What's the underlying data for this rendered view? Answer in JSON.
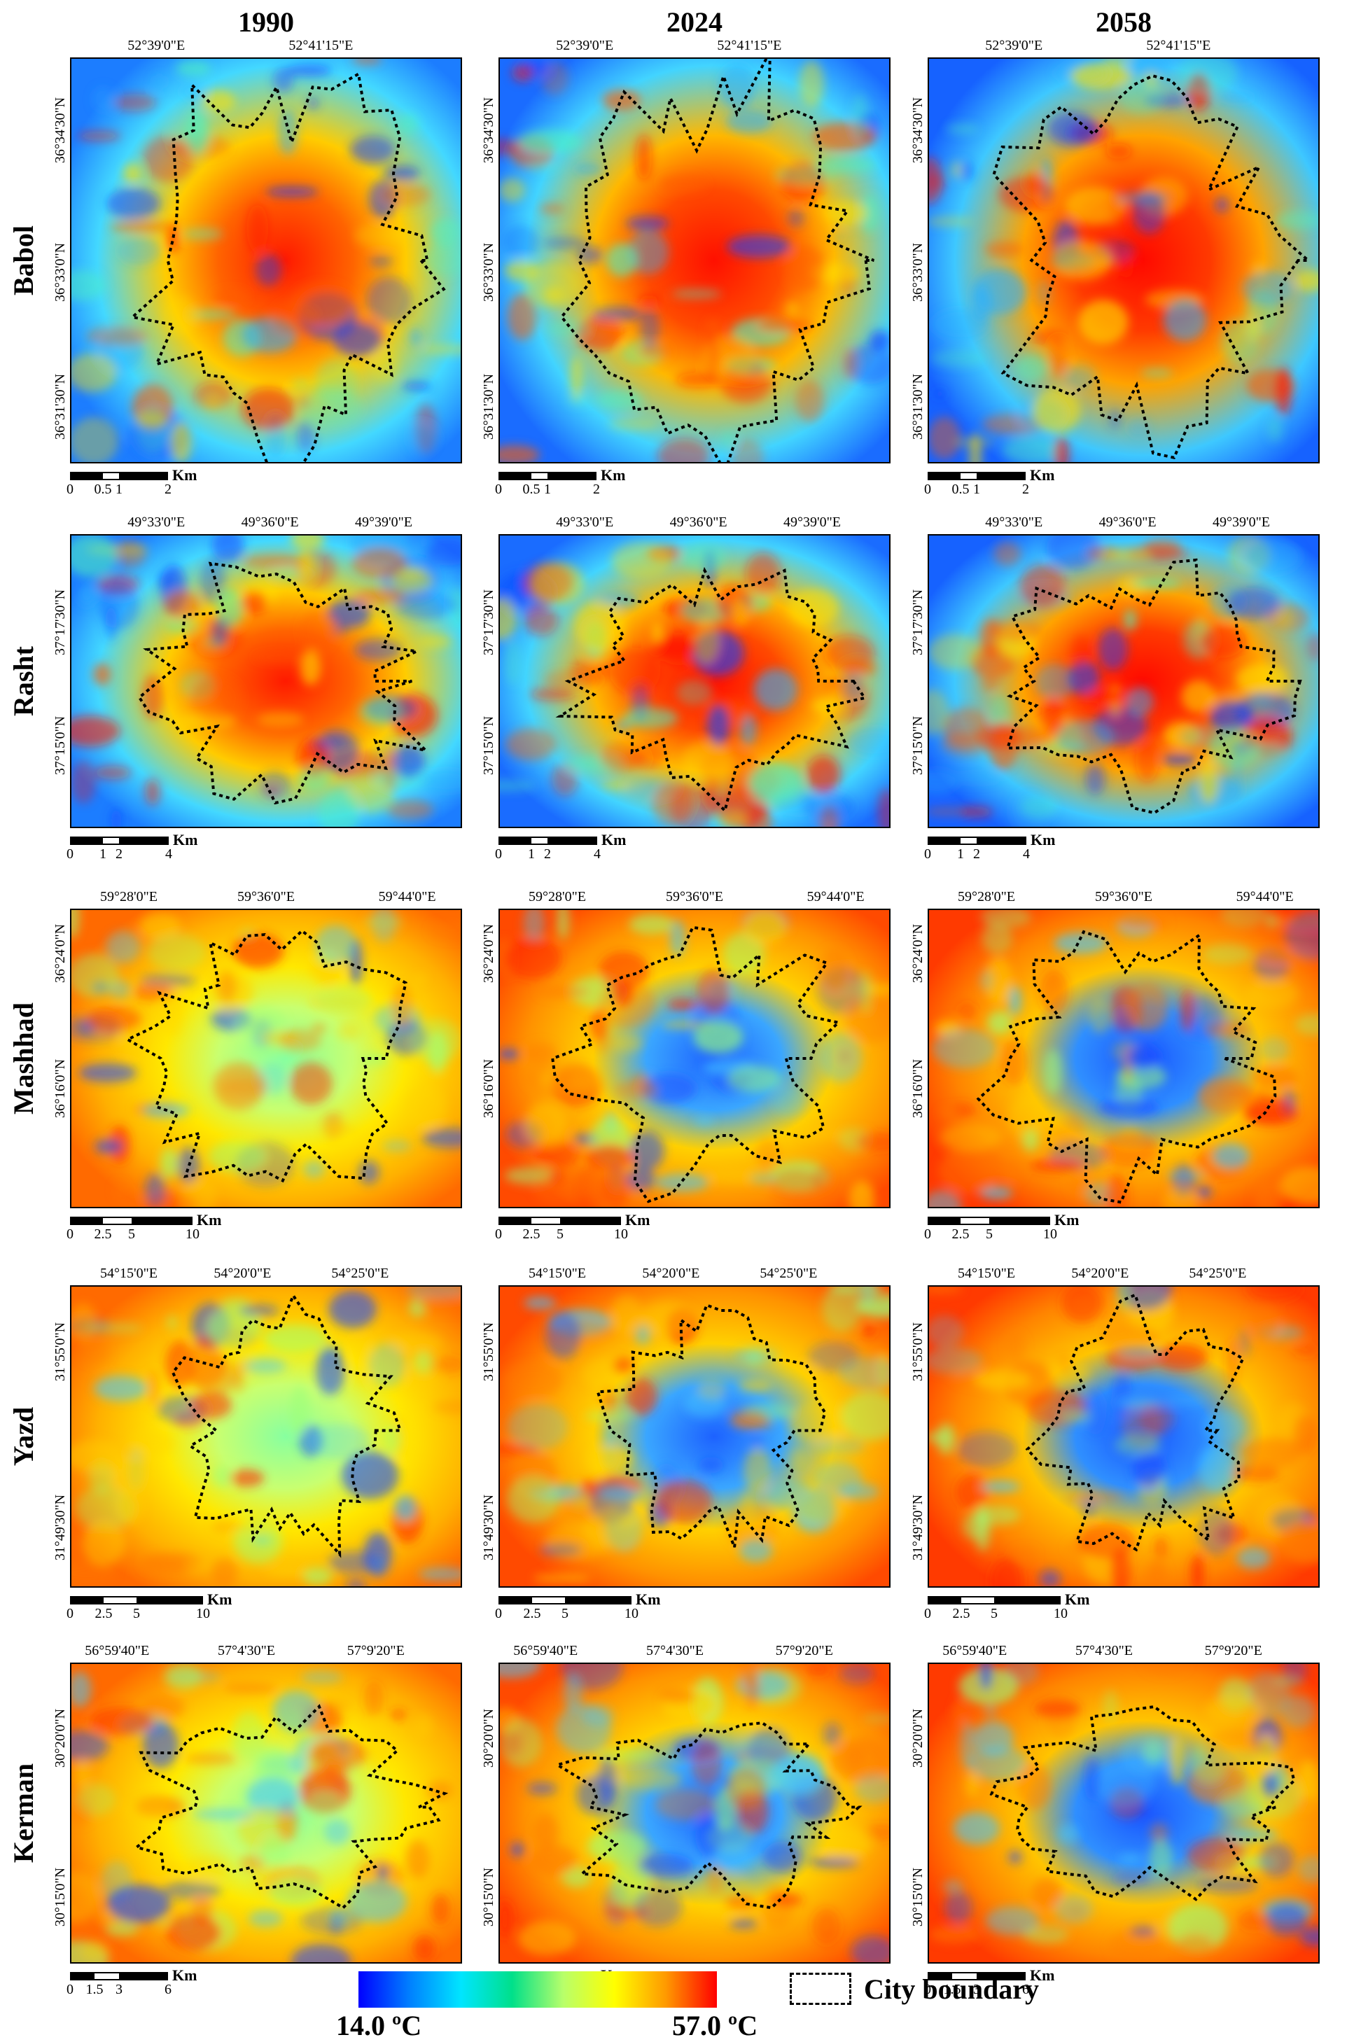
{
  "years": [
    "1990",
    "2024",
    "2058"
  ],
  "cities": [
    {
      "name": "Babol",
      "lon_labels": [
        "52°39'0\"E",
        "52°41'15\"E"
      ],
      "lat_labels": [
        "36°34'30\"N",
        "36°33'0\"N",
        "36°31'30\"N"
      ],
      "scale_labels": [
        "0",
        "0.5",
        "1",
        "2"
      ],
      "scale_unit": "Km"
    },
    {
      "name": "Rasht",
      "lon_labels": [
        "49°33'0\"E",
        "49°36'0\"E",
        "49°39'0\"E"
      ],
      "lat_labels": [
        "37°17'30\"N",
        "37°15'0\"N"
      ],
      "scale_labels": [
        "0",
        "1",
        "2",
        "4"
      ],
      "scale_unit": "Km"
    },
    {
      "name": "Mashhad",
      "lon_labels": [
        "59°28'0\"E",
        "59°36'0\"E",
        "59°44'0\"E"
      ],
      "lat_labels": [
        "36°24'0\"N",
        "36°16'0\"N"
      ],
      "scale_labels": [
        "0",
        "2.5",
        "5",
        "10"
      ],
      "scale_unit": "Km"
    },
    {
      "name": "Yazd",
      "lon_labels": [
        "54°15'0\"E",
        "54°20'0\"E",
        "54°25'0\"E"
      ],
      "lat_labels": [
        "31°55'0\"N",
        "31°49'30\"N"
      ],
      "scale_labels": [
        "0",
        "2.5",
        "5",
        "10"
      ],
      "scale_unit": "Km"
    },
    {
      "name": "Kerman",
      "lon_labels": [
        "56°59'40\"E",
        "57°4'30\"E",
        "57°9'20\"E"
      ],
      "lat_labels": [
        "30°20'0\"N",
        "30°15'0\"N"
      ],
      "scale_labels": [
        "0",
        "1.5",
        "3",
        "6"
      ],
      "scale_unit": "Km"
    }
  ],
  "legend": {
    "min_label": "14.0 ºC",
    "max_label": "57.0 ºC",
    "colors": [
      "#0000ff",
      "#0080ff",
      "#00e5ff",
      "#00e08a",
      "#b8ff6a",
      "#ffff00",
      "#ff9a00",
      "#ff0000"
    ],
    "boundary_label": "City boundary"
  }
}
